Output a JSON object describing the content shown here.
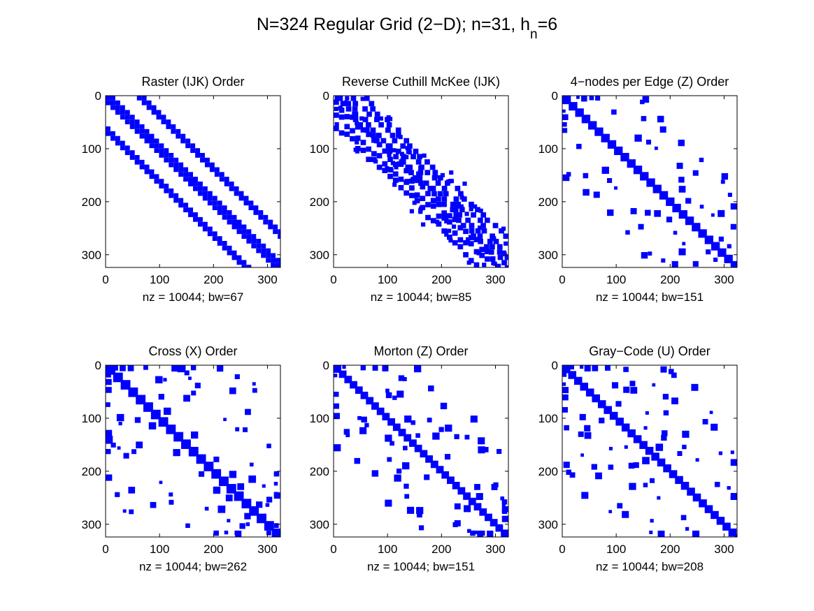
{
  "figure": {
    "title_main": "N=324 Regular Grid (2−D); n=31, h",
    "title_sub": "n",
    "title_tail": "=6"
  },
  "style": {
    "marker_color": "#0000ff",
    "axes_color": "#000000",
    "background": "#ffffff"
  },
  "chart_data": [
    {
      "type": "spy",
      "pattern": "raster",
      "title": "Raster (IJK) Order",
      "xlabel": "nz = 10044; bw=67",
      "xlim": [
        0,
        324
      ],
      "ylim": [
        0,
        324
      ],
      "xticks": [
        0,
        100,
        200,
        300
      ],
      "yticks": [
        0,
        100,
        200,
        300
      ],
      "nz": 10044,
      "bandwidth": 67,
      "grid": false
    },
    {
      "type": "spy",
      "pattern": "rcm",
      "title": "Reverse Cuthill McKee (IJK)",
      "xlabel": "nz = 10044; bw=85",
      "xlim": [
        0,
        324
      ],
      "ylim": [
        0,
        324
      ],
      "xticks": [
        0,
        100,
        200,
        300
      ],
      "yticks": [
        0,
        100,
        200,
        300
      ],
      "nz": 10044,
      "bandwidth": 85,
      "grid": false
    },
    {
      "type": "spy",
      "pattern": "edge4",
      "title": "4−nodes per Edge (Z) Order",
      "xlabel": "nz = 10044; bw=151",
      "xlim": [
        0,
        324
      ],
      "ylim": [
        0,
        324
      ],
      "xticks": [
        0,
        100,
        200,
        300
      ],
      "yticks": [
        0,
        100,
        200,
        300
      ],
      "nz": 10044,
      "bandwidth": 151,
      "grid": false
    },
    {
      "type": "spy",
      "pattern": "cross",
      "title": "Cross (X) Order",
      "xlabel": "nz = 10044; bw=262",
      "xlim": [
        0,
        324
      ],
      "ylim": [
        0,
        324
      ],
      "xticks": [
        0,
        100,
        200,
        300
      ],
      "yticks": [
        0,
        100,
        200,
        300
      ],
      "nz": 10044,
      "bandwidth": 262,
      "grid": false
    },
    {
      "type": "spy",
      "pattern": "morton",
      "title": "Morton (Z) Order",
      "xlabel": "nz = 10044; bw=151",
      "xlim": [
        0,
        324
      ],
      "ylim": [
        0,
        324
      ],
      "xticks": [
        0,
        100,
        200,
        300
      ],
      "yticks": [
        0,
        100,
        200,
        300
      ],
      "nz": 10044,
      "bandwidth": 151,
      "grid": false
    },
    {
      "type": "spy",
      "pattern": "gray",
      "title": "Gray−Code (U) Order",
      "xlabel": "nz = 10044; bw=208",
      "xlim": [
        0,
        324
      ],
      "ylim": [
        0,
        324
      ],
      "xticks": [
        0,
        100,
        200,
        300
      ],
      "yticks": [
        0,
        100,
        200,
        300
      ],
      "nz": 10044,
      "bandwidth": 208,
      "grid": false
    }
  ]
}
